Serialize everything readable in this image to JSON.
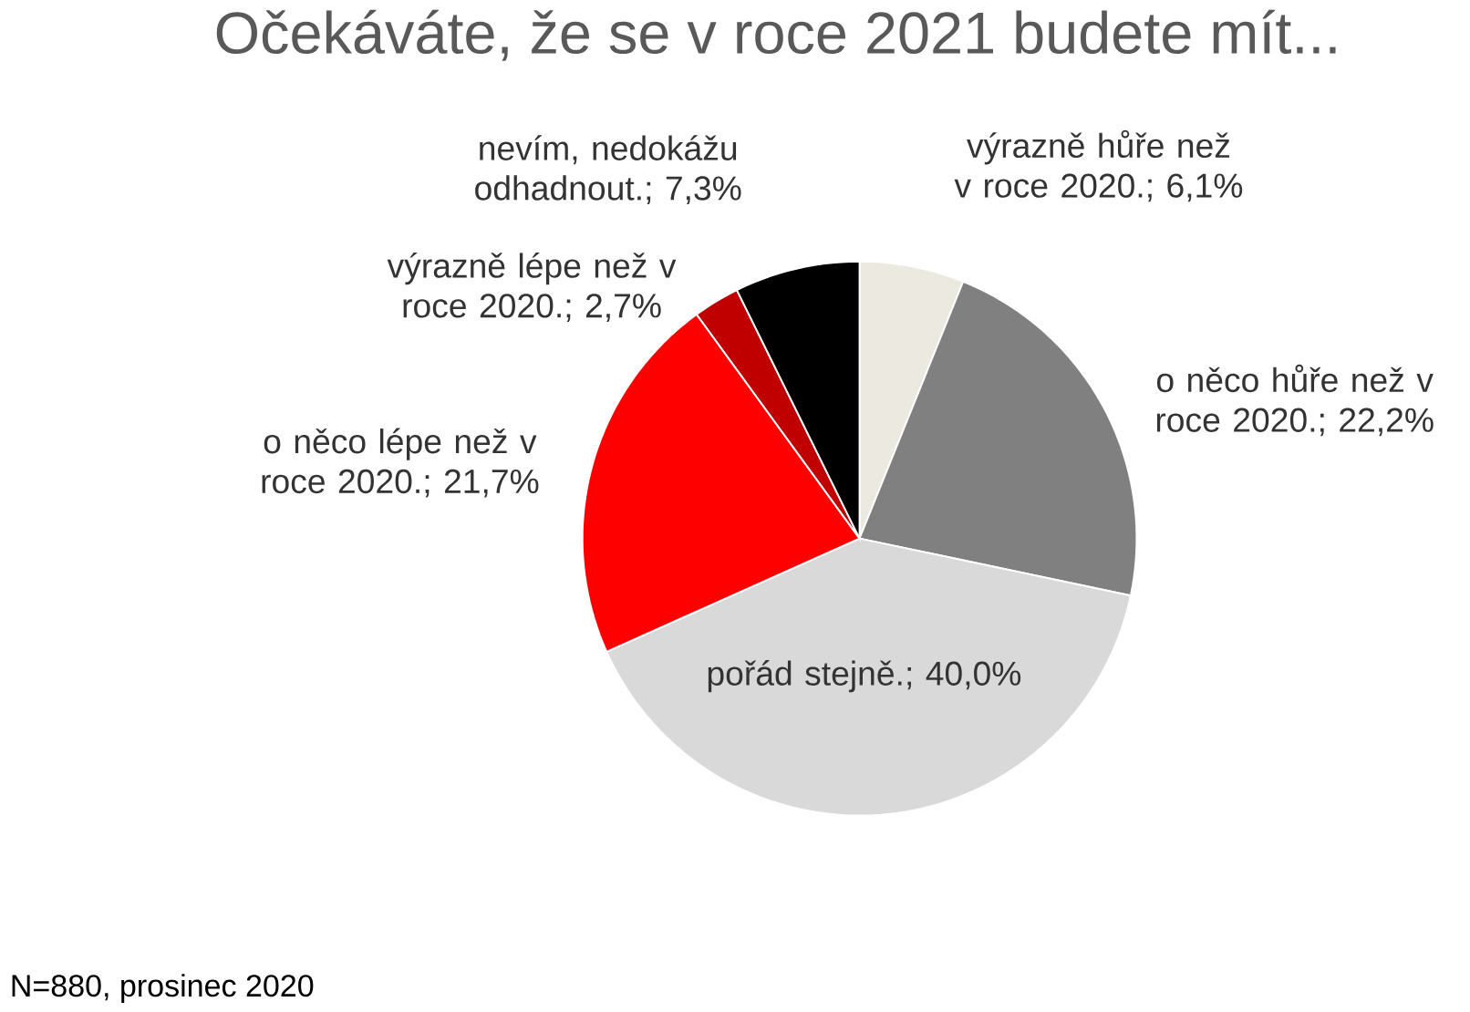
{
  "chart_data": {
    "type": "pie",
    "title": "Očekáváte, že se v roce 2021 budete mít...",
    "categories": [
      "výrazně hůře než v roce 2020.",
      "o něco hůře než v roce 2020.",
      "pořád stejně.",
      "o něco lépe než v roce 2020.",
      "výrazně lépe než v roce 2020.",
      "nevím, nedokážu odhadnout."
    ],
    "values": [
      6.1,
      22.2,
      40.0,
      21.7,
      2.7,
      7.3
    ],
    "value_labels": [
      "; 6,1%",
      "; 22,2%",
      "; 40,0%",
      "; 21,7%",
      "; 2,7%",
      "; 7,3%"
    ],
    "colors": [
      "#ece9e0",
      "#808080",
      "#d9d9d9",
      "#ff0000",
      "#c00000",
      "#000000"
    ],
    "annotations": [
      "N=880, prosinec 2020"
    ]
  }
}
